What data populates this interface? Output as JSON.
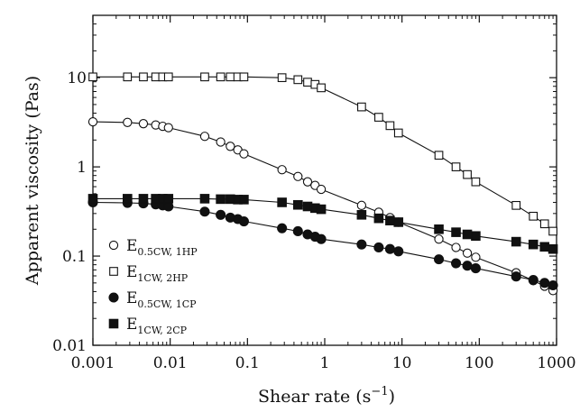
{
  "chart_data": {
    "type": "scatter",
    "x_scale": "log",
    "y_scale": "log",
    "xlabel": "Shear rate (s",
    "xlabel_superscript": "−1",
    "xlabel_suffix": ")",
    "ylabel": "Apparent viscosity (Pas)",
    "xlim": [
      0.001,
      1000
    ],
    "ylim": [
      0.01,
      50
    ],
    "x_ticks": [
      {
        "value": 0.001,
        "label": "0.001"
      },
      {
        "value": 0.01,
        "label": "0.01"
      },
      {
        "value": 0.1,
        "label": "0.1"
      },
      {
        "value": 1,
        "label": "1"
      },
      {
        "value": 10,
        "label": "10"
      },
      {
        "value": 100,
        "label": "100"
      },
      {
        "value": 1000,
        "label": "1000"
      }
    ],
    "y_ticks": [
      {
        "value": 0.01,
        "label": "0.01"
      },
      {
        "value": 0.1,
        "label": "0.1"
      },
      {
        "value": 1,
        "label": "1"
      },
      {
        "value": 10,
        "label": "10"
      }
    ],
    "legend_position": "bottom-left",
    "series": [
      {
        "name": "E0.5CW, 1HP",
        "legend_main": "E",
        "legend_sub": "0.5CW, 1HP",
        "marker": "circle-open",
        "x": [
          0.001,
          0.0028,
          0.0045,
          0.0065,
          0.008,
          0.0095,
          0.028,
          0.045,
          0.06,
          0.075,
          0.09,
          0.28,
          0.45,
          0.6,
          0.75,
          0.9,
          3,
          5,
          7,
          9,
          30,
          50,
          70,
          90,
          300,
          500,
          700,
          900
        ],
        "y": [
          3.2,
          3.15,
          3.05,
          2.95,
          2.85,
          2.75,
          2.2,
          1.9,
          1.7,
          1.55,
          1.4,
          0.93,
          0.78,
          0.68,
          0.62,
          0.56,
          0.37,
          0.31,
          0.27,
          0.24,
          0.155,
          0.125,
          0.108,
          0.097,
          0.065,
          0.053,
          0.046,
          0.041
        ]
      },
      {
        "name": "E1CW, 2HP",
        "legend_main": "E",
        "legend_sub": "1CW, 2HP",
        "marker": "square-open",
        "x": [
          0.001,
          0.0028,
          0.0045,
          0.0065,
          0.008,
          0.0095,
          0.028,
          0.045,
          0.06,
          0.075,
          0.09,
          0.28,
          0.45,
          0.6,
          0.75,
          0.9,
          3,
          5,
          7,
          9,
          30,
          50,
          70,
          90,
          300,
          500,
          700,
          900
        ],
        "y": [
          10.2,
          10.2,
          10.2,
          10.2,
          10.2,
          10.2,
          10.2,
          10.2,
          10.2,
          10.2,
          10.2,
          10.0,
          9.5,
          8.9,
          8.4,
          7.7,
          4.7,
          3.6,
          2.9,
          2.4,
          1.35,
          1.0,
          0.82,
          0.68,
          0.37,
          0.28,
          0.23,
          0.19
        ]
      },
      {
        "name": "E0.5CW, 1CP",
        "legend_main": "E",
        "legend_sub": "0.5CW, 1CP",
        "marker": "circle-filled",
        "x": [
          0.001,
          0.0028,
          0.0045,
          0.0065,
          0.008,
          0.0095,
          0.028,
          0.045,
          0.06,
          0.075,
          0.09,
          0.28,
          0.45,
          0.6,
          0.75,
          0.9,
          3,
          5,
          7,
          9,
          30,
          50,
          70,
          90,
          300,
          500,
          700,
          900
        ],
        "y": [
          0.4,
          0.395,
          0.39,
          0.38,
          0.37,
          0.36,
          0.315,
          0.29,
          0.27,
          0.26,
          0.245,
          0.205,
          0.19,
          0.175,
          0.165,
          0.155,
          0.135,
          0.125,
          0.12,
          0.113,
          0.092,
          0.083,
          0.078,
          0.073,
          0.059,
          0.054,
          0.05,
          0.047
        ]
      },
      {
        "name": "E1CW, 2CP",
        "legend_main": "E",
        "legend_sub": "1CW, 2CP",
        "marker": "square-filled",
        "x": [
          0.001,
          0.0028,
          0.0045,
          0.0065,
          0.008,
          0.0095,
          0.028,
          0.045,
          0.06,
          0.075,
          0.09,
          0.28,
          0.45,
          0.6,
          0.75,
          0.9,
          3,
          5,
          7,
          9,
          30,
          50,
          70,
          90,
          300,
          500,
          700,
          900
        ],
        "y": [
          0.44,
          0.44,
          0.44,
          0.44,
          0.44,
          0.44,
          0.44,
          0.435,
          0.435,
          0.43,
          0.43,
          0.4,
          0.375,
          0.36,
          0.345,
          0.335,
          0.29,
          0.265,
          0.25,
          0.24,
          0.2,
          0.185,
          0.175,
          0.168,
          0.145,
          0.135,
          0.127,
          0.12
        ]
      }
    ]
  }
}
